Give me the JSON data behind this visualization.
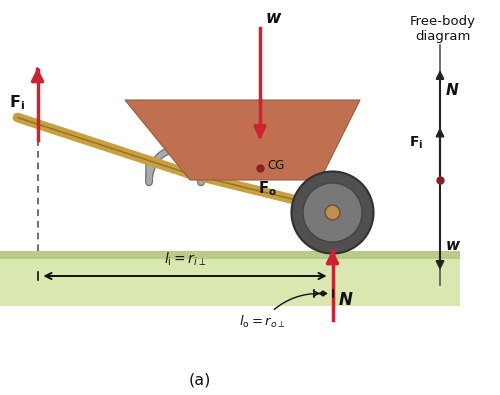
{
  "fig_width": 5.0,
  "fig_height": 3.95,
  "dpi": 100,
  "bg_color": "#ffffff",
  "ground_color_top": "#b8cc88",
  "ground_color_bot": "#d8e8b0",
  "body_color": "#c07050",
  "body_edge": "#906040",
  "handle_color": "#c8a040",
  "handle_edge": "#907030",
  "wheel_dark": "#505050",
  "wheel_mid": "#787878",
  "wheel_light": "#909090",
  "wheel_hub": "#c09050",
  "arrow_red": "#cc2233",
  "arrow_black": "#222222",
  "text_color": "#111111",
  "dashed_color": "#555555",
  "label_a": "(a)",
  "label_free_body": "Free-body\ndiagram",
  "fi_label": "F",
  "fo_label": "F",
  "w_label": "w",
  "n_label": "N",
  "cg_label": "CG",
  "li_label": "$l_\\mathrm{i} = r_{i\\perp}$",
  "lo_label": "$l_\\mathrm{o} = r_{o\\perp}$"
}
